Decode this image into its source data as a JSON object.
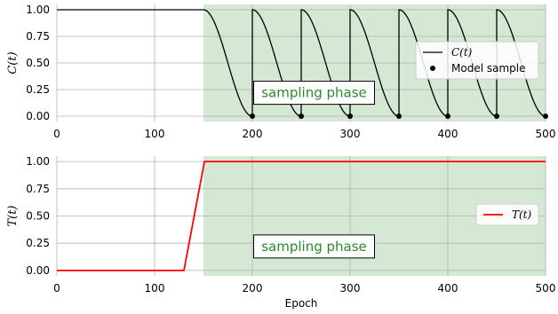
{
  "chart_data": [
    {
      "type": "line",
      "ylabel": "C(t)",
      "xlim": [
        0,
        500
      ],
      "ylim": [
        -0.05,
        1.05
      ],
      "xticks": [
        0,
        100,
        200,
        300,
        400,
        500
      ],
      "yticks": [
        "0.00",
        "0.25",
        "0.50",
        "0.75",
        "1.00"
      ],
      "grid": true,
      "shaded_region": {
        "x": [
          150,
          500
        ],
        "color": "#d5e8d4"
      },
      "annotation": {
        "text": "sampling phase",
        "x": 205,
        "y": 0.22,
        "color": "#2a8a2a"
      },
      "legend": {
        "position": "right"
      },
      "series": [
        {
          "name": "C(t)",
          "style": "line",
          "color": "#000000",
          "description": "constant 1.0 for epochs 0-150, then cosine decay from 1.0 to 0.0 in each 50-epoch cycle, restarting at 1.0 every 50 epochs",
          "x": [
            0,
            150,
            162.5,
            175,
            187.5,
            200,
            200,
            212.5,
            225,
            237.5,
            250,
            250,
            262.5,
            275,
            287.5,
            300,
            300,
            312.5,
            325,
            337.5,
            350,
            350,
            362.5,
            375,
            387.5,
            400,
            400,
            412.5,
            425,
            437.5,
            450,
            450,
            462.5,
            475,
            487.5,
            500
          ],
          "y": [
            1.0,
            1.0,
            0.85,
            0.5,
            0.15,
            0.0,
            1.0,
            0.85,
            0.5,
            0.15,
            0.0,
            1.0,
            0.85,
            0.5,
            0.15,
            0.0,
            1.0,
            0.85,
            0.5,
            0.15,
            0.0,
            1.0,
            0.85,
            0.5,
            0.15,
            0.0,
            1.0,
            0.85,
            0.5,
            0.15,
            0.0,
            1.0,
            0.85,
            0.5,
            0.15,
            0.0
          ]
        },
        {
          "name": "Model sample",
          "style": "scatter",
          "color": "#000000",
          "x": [
            200,
            250,
            300,
            350,
            400,
            450,
            500
          ],
          "y": [
            0,
            0,
            0,
            0,
            0,
            0,
            0
          ]
        }
      ]
    },
    {
      "type": "line",
      "xlabel": "Epoch",
      "ylabel": "T(t)",
      "xlim": [
        0,
        500
      ],
      "ylim": [
        -0.05,
        1.05
      ],
      "xticks": [
        0,
        100,
        200,
        300,
        400,
        500
      ],
      "yticks": [
        "0.00",
        "0.25",
        "0.50",
        "0.75",
        "1.00"
      ],
      "grid": true,
      "shaded_region": {
        "x": [
          150,
          500
        ],
        "color": "#d5e8d4"
      },
      "annotation": {
        "text": "sampling phase",
        "x": 205,
        "y": 0.22,
        "color": "#2a8a2a"
      },
      "legend": {
        "position": "right"
      },
      "series": [
        {
          "name": "T(t)",
          "style": "line",
          "color": "#ff0000",
          "x": [
            0,
            130,
            151,
            500
          ],
          "y": [
            0.0,
            0.0,
            1.0,
            1.0
          ]
        }
      ]
    }
  ]
}
